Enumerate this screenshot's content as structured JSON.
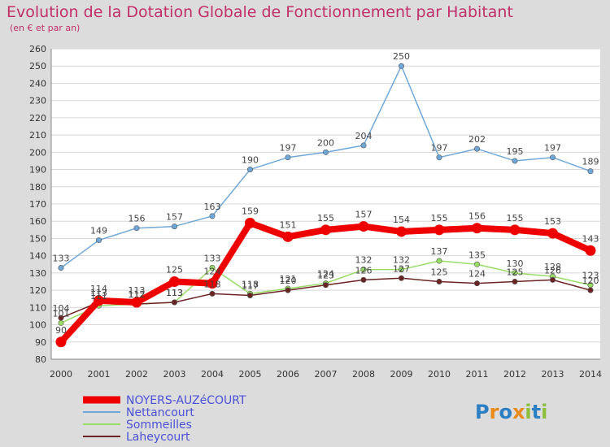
{
  "chart_data": {
    "type": "line",
    "title": "Evolution de la Dotation Globale de Fonctionnement par Habitant",
    "subtitle": "(en € et par an)",
    "xlabel": "",
    "ylabel": "",
    "categories": [
      "2000",
      "2001",
      "2002",
      "2003",
      "2004",
      "2005",
      "2006",
      "2007",
      "2008",
      "2009",
      "2010",
      "2011",
      "2012",
      "2013",
      "2014"
    ],
    "ylim": [
      80,
      260
    ],
    "ytick_step": 10,
    "grid": true,
    "series": [
      {
        "name": "NOYERS-AUZéCOURT",
        "color": "#ee0000",
        "values": [
          90,
          114,
          113,
          125,
          124,
          159,
          151,
          155,
          157,
          154,
          155,
          156,
          155,
          153,
          143
        ]
      },
      {
        "name": "Nettancourt",
        "color": "#6fa8d8",
        "values": [
          133,
          149,
          156,
          157,
          163,
          190,
          197,
          200,
          204,
          250,
          197,
          202,
          195,
          197,
          189
        ]
      },
      {
        "name": "Sommeilles",
        "color": "#99dd66",
        "values": [
          101,
          111,
          112,
          113,
          133,
          118,
          121,
          124,
          132,
          132,
          137,
          135,
          130,
          128,
          123
        ]
      },
      {
        "name": "Laheycourt",
        "color": "#6b2424",
        "values": [
          104,
          113,
          112,
          113,
          118,
          117,
          120,
          123,
          126,
          127,
          125,
          124,
          125,
          126,
          120
        ]
      }
    ],
    "legend_position": "bottom-left"
  },
  "brand": {
    "label": "Proxiti"
  }
}
